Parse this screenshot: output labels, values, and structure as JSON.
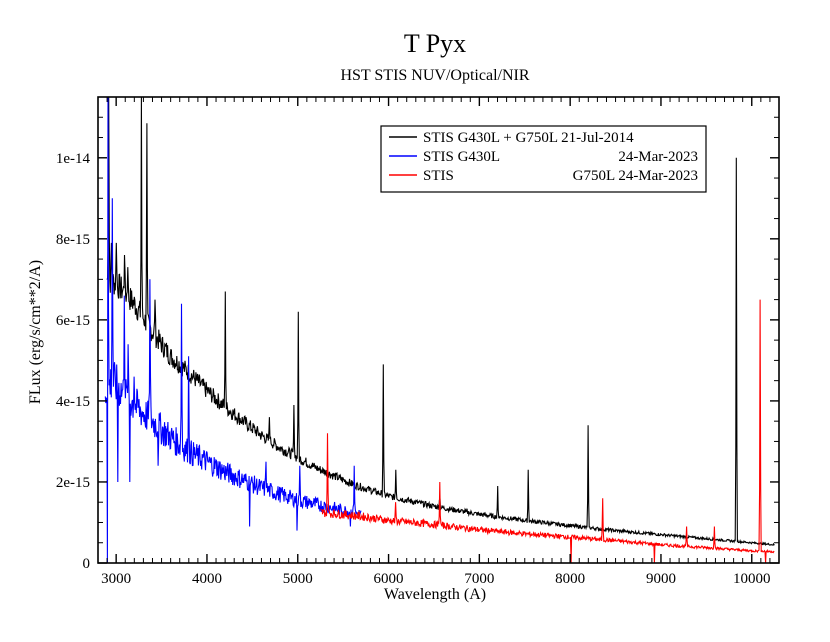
{
  "chart_data": {
    "type": "line",
    "title": "T Pyx",
    "subtitle": "HST STIS NUV/Optical/NIR",
    "xlabel": "Wavelength (A)",
    "ylabel": "FLux (erg/s/cm**2/A)",
    "xlim": [
      2800,
      10300
    ],
    "ylim": [
      0,
      1.15e-14
    ],
    "x_ticks": [
      3000,
      4000,
      5000,
      6000,
      7000,
      8000,
      9000,
      10000
    ],
    "x_tick_labels": [
      "3000",
      "4000",
      "5000",
      "6000",
      "7000",
      "8000",
      "9000",
      "10000"
    ],
    "y_ticks": [
      0,
      2e-15,
      4e-15,
      6e-15,
      8e-15,
      1e-14
    ],
    "y_tick_labels": [
      "0",
      "2e-15",
      "4e-15",
      "6e-15",
      "8e-15",
      "1e-14"
    ],
    "legend_position": "top-right",
    "series": [
      {
        "name": "STIS G430L + G750L  21-Jul-2014",
        "color": "#000000",
        "x": [
          2900,
          3000,
          3200,
          3400,
          3600,
          3800,
          4000,
          4200,
          4400,
          4600,
          4800,
          5000,
          5200,
          5400,
          5600,
          5800,
          6000,
          6500,
          7000,
          7500,
          8000,
          8500,
          9000,
          9500,
          10000,
          10250
        ],
        "y": [
          7e-15,
          6.9e-15,
          6.4e-15,
          5.7e-15,
          5.1e-15,
          4.7e-15,
          4.25e-15,
          3.85e-15,
          3.5e-15,
          3.15e-15,
          2.85e-15,
          2.6e-15,
          2.35e-15,
          2.15e-15,
          1.95e-15,
          1.8e-15,
          1.65e-15,
          1.4e-15,
          1.2e-15,
          1.05e-15,
          9.2e-16,
          8e-16,
          7e-16,
          6e-16,
          5e-16,
          4.5e-16
        ],
        "emission_lines": [
          {
            "x": 2920,
            "peak": 1.15e-14
          },
          {
            "x": 2950,
            "peak": 7.9e-15
          },
          {
            "x": 3000,
            "peak": 7.9e-15
          },
          {
            "x": 3090,
            "peak": 7.6e-15
          },
          {
            "x": 3130,
            "peak": 7.3e-15
          },
          {
            "x": 3280,
            "peak": 1.15e-14
          },
          {
            "x": 3340,
            "peak": 1.085e-14
          },
          {
            "x": 3430,
            "peak": 6.5e-15
          },
          {
            "x": 4200,
            "peak": 6.7e-15
          },
          {
            "x": 4686,
            "peak": 3.6e-15
          },
          {
            "x": 4959,
            "peak": 3.9e-15
          },
          {
            "x": 5007,
            "peak": 6.2e-15
          },
          {
            "x": 5940,
            "peak": 4.9e-15
          },
          {
            "x": 6080,
            "peak": 2.3e-15
          },
          {
            "x": 6563,
            "peak": 2.2e-15
          },
          {
            "x": 7200,
            "peak": 1.9e-15
          },
          {
            "x": 7540,
            "peak": 2.3e-15
          },
          {
            "x": 8200,
            "peak": 3.4e-15
          },
          {
            "x": 9830,
            "peak": 1e-14
          }
        ]
      },
      {
        "name": "STIS G430L",
        "date": "24-Mar-2023",
        "color": "#0000ff",
        "x": [
          2880,
          2950,
          3000,
          3200,
          3400,
          3600,
          3800,
          4000,
          4200,
          4400,
          4600,
          4800,
          5000,
          5200,
          5400,
          5600,
          5700
        ],
        "y": [
          4.2e-15,
          4.5e-15,
          4.4e-15,
          3.9e-15,
          3.5e-15,
          3.1e-15,
          2.75e-15,
          2.5e-15,
          2.25e-15,
          2.05e-15,
          1.85e-15,
          1.7e-15,
          1.55e-15,
          1.45e-15,
          1.35e-15,
          1.25e-15,
          1.2e-15
        ],
        "emission_lines": [
          {
            "x": 2910,
            "peak": 1.15e-14
          },
          {
            "x": 2960,
            "peak": 9e-15
          },
          {
            "x": 3090,
            "peak": 6.6e-15
          },
          {
            "x": 3130,
            "peak": 5.4e-15
          },
          {
            "x": 3200,
            "peak": 4.6e-15
          },
          {
            "x": 3370,
            "peak": 7e-15
          },
          {
            "x": 3720,
            "peak": 6.4e-15
          },
          {
            "x": 3800,
            "peak": 5.1e-15
          },
          {
            "x": 4650,
            "peak": 2.5e-15
          },
          {
            "x": 5020,
            "peak": 2.4e-15
          },
          {
            "x": 5620,
            "peak": 2.4e-15
          }
        ],
        "absorption_lines": [
          {
            "x": 2905,
            "min": 0
          },
          {
            "x": 3020,
            "min": 2e-15
          },
          {
            "x": 3150,
            "min": 2e-15
          },
          {
            "x": 3460,
            "min": 2.4e-15
          },
          {
            "x": 4470,
            "min": 9e-16
          },
          {
            "x": 4990,
            "min": 8e-16
          },
          {
            "x": 5580,
            "min": 9e-16
          }
        ]
      },
      {
        "name": "STIS",
        "grating": "G750L",
        "date": "24-Mar-2023",
        "color": "#ff0000",
        "x": [
          5250,
          5500,
          5800,
          6000,
          6500,
          7000,
          7500,
          8000,
          8500,
          9000,
          9500,
          10000,
          10250
        ],
        "y": [
          1.25e-15,
          1.2e-15,
          1.12e-15,
          1.05e-15,
          9.5e-16,
          8.2e-16,
          7.2e-16,
          6.4e-16,
          5.5e-16,
          4.5e-16,
          3.8e-16,
          3e-16,
          2.8e-16
        ],
        "emission_lines": [
          {
            "x": 5330,
            "peak": 3.2e-15
          },
          {
            "x": 6563,
            "peak": 2e-15
          },
          {
            "x": 6080,
            "peak": 1.5e-15
          },
          {
            "x": 8360,
            "peak": 1.6e-15
          },
          {
            "x": 9280,
            "peak": 9e-16
          },
          {
            "x": 9590,
            "peak": 9e-16
          },
          {
            "x": 10090,
            "peak": 6.5e-15
          }
        ],
        "absorption_lines": [
          {
            "x": 8010,
            "min": 0
          },
          {
            "x": 8930,
            "min": 0
          },
          {
            "x": 10150,
            "min": 0
          }
        ]
      }
    ],
    "legend": [
      {
        "text": "STIS G430L + G750L  21-Jul-2014",
        "color": "#000000"
      },
      {
        "text": "STIS G430L",
        "right": "24-Mar-2023",
        "color": "#0000ff"
      },
      {
        "text": "STIS",
        "right": "G750L  24-Mar-2023",
        "color": "#ff0000"
      }
    ]
  }
}
